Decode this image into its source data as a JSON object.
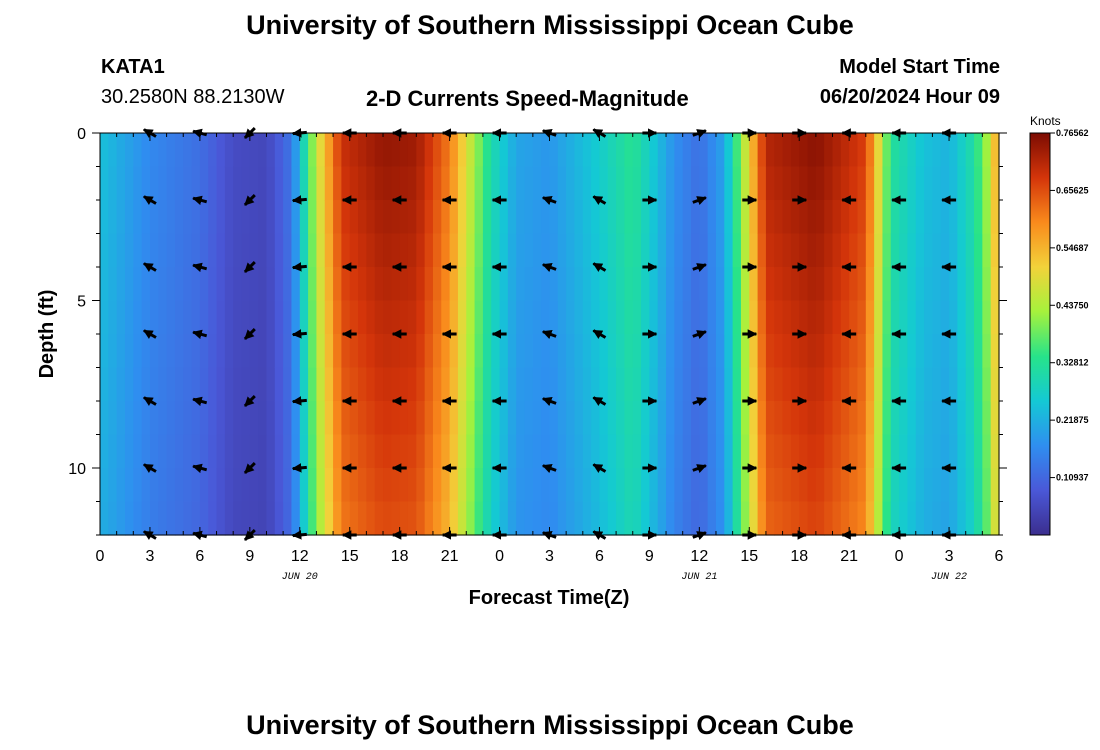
{
  "page": {
    "title": "University of Southern Mississippi Ocean Cube",
    "station_id": "KATA1",
    "station_coords": "30.2580N  88.2130W",
    "product": "2-D Currents Speed-Magnitude",
    "model_start_label": "Model Start Time",
    "model_start_value": "06/20/2024 Hour 09",
    "title_repeat": "University of Southern Mississippi Ocean Cube"
  },
  "colors": {
    "colormap": [
      "#3b2e8e",
      "#4a58d8",
      "#2f8ef0",
      "#14c9d4",
      "#27e38a",
      "#a6f23c",
      "#f2d23a",
      "#f98a1c",
      "#d4350a",
      "#7c0c02"
    ]
  },
  "chart_data": {
    "type": "heatmap",
    "title": "2-D Currents Speed-Magnitude",
    "xlabel": "Forecast Time(Z)",
    "ylabel": "Depth (ft)",
    "colorbar_label": "Knots",
    "colorbar_ticks": [
      "0.76562",
      "0.65625",
      "0.54687",
      "0.43750",
      "0.32812",
      "0.21875",
      "0.10937"
    ],
    "colorbar_tick_values": [
      0.76562,
      0.65625,
      0.54687,
      0.4375,
      0.32812,
      0.21875,
      0.10937
    ],
    "vmin": 0.0,
    "vmax": 0.76562,
    "x_range": [
      0,
      54
    ],
    "x_tick_values": [
      0,
      3,
      6,
      9,
      12,
      15,
      18,
      21,
      24,
      27,
      30,
      33,
      36,
      39,
      42,
      45,
      48,
      51,
      54
    ],
    "x_tick_labels": [
      "0",
      "3",
      "6",
      "9",
      "12",
      "15",
      "18",
      "21",
      "0",
      "3",
      "6",
      "9",
      "12",
      "15",
      "18",
      "21",
      "0",
      "3",
      "6"
    ],
    "date_labels": [
      {
        "hour": 12,
        "text": "JUN 20"
      },
      {
        "hour": 36,
        "text": "JUN 21"
      },
      {
        "hour": 51,
        "text": "JUN 22"
      }
    ],
    "y_range": [
      0,
      12
    ],
    "y_reversed": true,
    "y_tick_values": [
      0,
      5,
      10
    ],
    "y_tick_labels": [
      "0",
      "5",
      "10"
    ],
    "speed_profile_hours": [
      0,
      3,
      6,
      8,
      10,
      11.5,
      13,
      14.5,
      17,
      19,
      21,
      23.5,
      25,
      27,
      30,
      32,
      34.5,
      36,
      37.5,
      40,
      43,
      46,
      47.5,
      49.5,
      51,
      52.5,
      53.5,
      54
    ],
    "speed_profile_knots": [
      0.24,
      0.16,
      0.12,
      0.06,
      0.05,
      0.13,
      0.45,
      0.68,
      0.73,
      0.72,
      0.6,
      0.3,
      0.2,
      0.18,
      0.26,
      0.33,
      0.17,
      0.12,
      0.2,
      0.7,
      0.74,
      0.66,
      0.32,
      0.24,
      0.22,
      0.31,
      0.45,
      0.6
    ],
    "vectors": {
      "hours": [
        3,
        6,
        9,
        12,
        15,
        18,
        21,
        24,
        27,
        30,
        33,
        36,
        39,
        42,
        45,
        48,
        51
      ],
      "depths_ft": [
        0,
        2,
        4,
        6,
        8,
        10,
        12
      ],
      "directions_deg": [
        150,
        165,
        225,
        185,
        180,
        180,
        180,
        180,
        160,
        150,
        0,
        20,
        0,
        0,
        180,
        180,
        180
      ]
    }
  }
}
